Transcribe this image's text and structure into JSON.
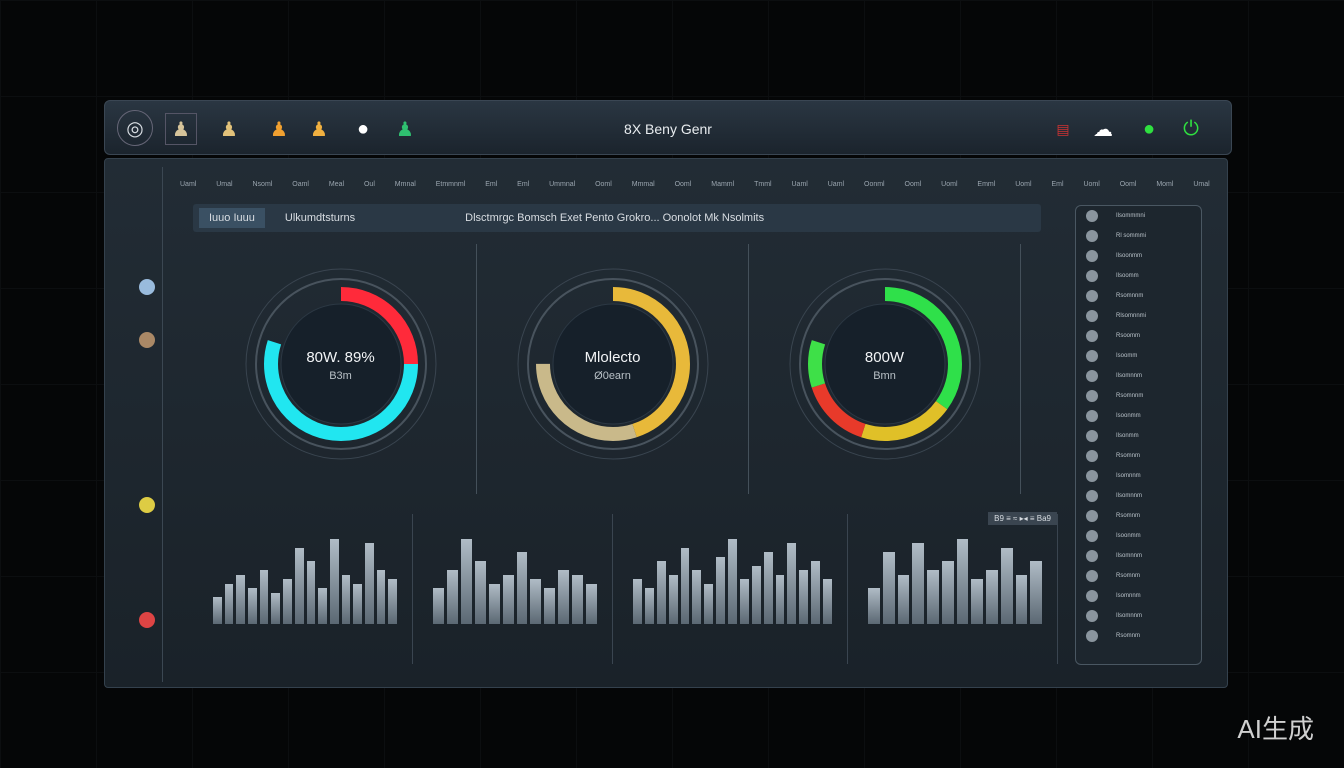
{
  "topbar": {
    "title": "8X Beny Genr",
    "icons": [
      "logo-icon",
      "user-icon",
      "user-icon",
      "user-icon",
      "users-icon",
      "user-icon",
      "user-green-icon",
      "battery-icon",
      "cloud-icon",
      "status-green-icon",
      "power-icon"
    ]
  },
  "columns": [
    "Uaml",
    "Umal",
    "Nsoml",
    "Oaml",
    "Meal",
    "Oul",
    "Mmnal",
    "Etmmnml",
    "Eml",
    "Eml",
    "Ummnal",
    "Ooml",
    "Mmmal",
    "Ooml",
    "Mamml",
    "Tmml",
    "Uaml",
    "Uaml",
    "Oonml",
    "Ooml",
    "Uoml",
    "Emml",
    "Uoml",
    "Eml",
    "Uoml",
    "Ooml",
    "Moml",
    "Umal"
  ],
  "section": {
    "tag": "Iuuo Iuuu",
    "title": "Ulkumdtsturns",
    "items": "Dlsctmrgc Bomsch Exet Pento  Grokro... Oonolot Mk Nsolmits"
  },
  "gauges": [
    {
      "value": "80W. 89%",
      "sub": "B3m",
      "segments": [
        {
          "color": "#ff2a3a",
          "fraction": 0.25
        },
        {
          "color": "#21e6f0",
          "fraction": 0.55
        }
      ]
    },
    {
      "value": "Mlolecto",
      "sub": "Ø0earn",
      "segments": [
        {
          "color": "#e8b93a",
          "fraction": 0.45
        },
        {
          "color": "#c9b98a",
          "fraction": 0.3
        }
      ]
    },
    {
      "value": "800W",
      "sub": "Bmn",
      "segments": [
        {
          "color": "#2fe04a",
          "fraction": 0.35
        },
        {
          "color": "#e0c028",
          "fraction": 0.2
        },
        {
          "color": "#e83a2a",
          "fraction": 0.15
        },
        {
          "color": "#3ee048",
          "fraction": 0.1
        }
      ]
    }
  ],
  "bar_panels": [
    {
      "values": [
        30,
        45,
        55,
        40,
        60,
        35,
        50,
        85,
        70,
        40,
        95,
        55,
        45,
        90,
        60,
        50
      ]
    },
    {
      "values": [
        40,
        60,
        95,
        70,
        45,
        55,
        80,
        50,
        40,
        60,
        55,
        45
      ]
    },
    {
      "values": [
        50,
        40,
        70,
        55,
        85,
        60,
        45,
        75,
        95,
        50,
        65,
        80,
        55,
        90,
        60,
        70,
        50
      ]
    },
    {
      "values": [
        40,
        80,
        55,
        90,
        60,
        70,
        95,
        50,
        60,
        85,
        55,
        70
      ],
      "label": "B9 ≡ ≈ ▸◂ ≡ Ba9"
    }
  ],
  "right_list": [
    "Ilsommmni",
    "Rl sommmi",
    "Ilsoonmm",
    "Ilsoomm",
    "Rsomnnm",
    "Rlsomnnmi",
    "Rsoomm",
    "Isoomm",
    "Ilsomnnm",
    "Rsomnnm",
    "Isoonmm",
    "Ilsonmm",
    "Rsomnm",
    "Isomnnm",
    "Ilsomnnm",
    "Rsomnm",
    "Isoonmm",
    "Ilsomnnm",
    "Rsomnm",
    "Isomnnm",
    "Ilsomnnm",
    "Rsomnm"
  ],
  "watermark": "AI生成"
}
